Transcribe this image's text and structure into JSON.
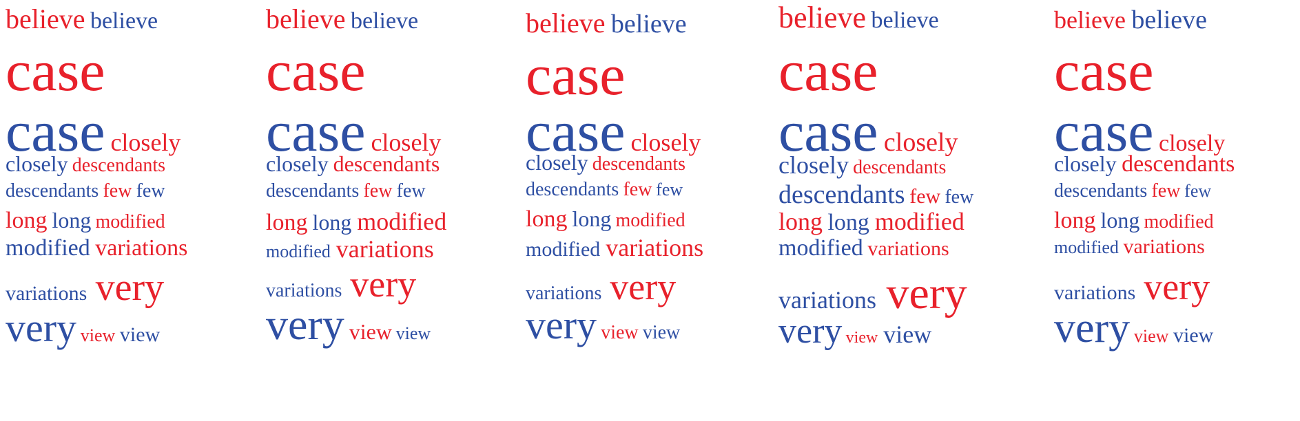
{
  "colors": {
    "red": "#e8212b",
    "blue": "#2e4fa3"
  },
  "panels": [
    {
      "name": "panel-1",
      "lines": [
        [
          {
            "text": "believe",
            "color": "red"
          },
          {
            "text": "believe",
            "color": "blue"
          }
        ],
        [
          {
            "text": "case",
            "color": "red"
          }
        ],
        [
          {
            "text": "case",
            "color": "blue"
          },
          {
            "text": "closely",
            "color": "red"
          }
        ],
        [
          {
            "text": "closely",
            "color": "blue"
          },
          {
            "text": "descendants",
            "color": "red"
          }
        ],
        [
          {
            "text": "descendants",
            "color": "blue"
          },
          {
            "text": "few",
            "color": "red"
          },
          {
            "text": "few",
            "color": "blue"
          }
        ],
        [
          {
            "text": "long",
            "color": "red"
          },
          {
            "text": "long",
            "color": "blue"
          },
          {
            "text": "modified",
            "color": "red"
          }
        ],
        [
          {
            "text": "modified",
            "color": "blue"
          },
          {
            "text": "variations",
            "color": "red"
          }
        ],
        [
          {
            "text": "variations",
            "color": "blue"
          },
          {
            "text": "very",
            "color": "red"
          }
        ],
        [
          {
            "text": "very",
            "color": "blue"
          },
          {
            "text": "view",
            "color": "red"
          },
          {
            "text": "view",
            "color": "blue"
          }
        ]
      ]
    },
    {
      "name": "panel-2",
      "lines": [
        [
          {
            "text": "believe",
            "color": "red"
          },
          {
            "text": "believe",
            "color": "blue"
          }
        ],
        [
          {
            "text": "case",
            "color": "red"
          }
        ],
        [
          {
            "text": "case",
            "color": "blue"
          },
          {
            "text": "closely",
            "color": "red"
          }
        ],
        [
          {
            "text": "closely",
            "color": "blue"
          },
          {
            "text": "descendants",
            "color": "red"
          }
        ],
        [
          {
            "text": "descendants",
            "color": "blue"
          },
          {
            "text": "few",
            "color": "red"
          },
          {
            "text": "few",
            "color": "blue"
          }
        ],
        [
          {
            "text": "long",
            "color": "red"
          },
          {
            "text": "long",
            "color": "blue"
          },
          {
            "text": "modified",
            "color": "red"
          }
        ],
        [
          {
            "text": "modified",
            "color": "blue"
          },
          {
            "text": "variations",
            "color": "red"
          }
        ],
        [
          {
            "text": "variations",
            "color": "blue"
          },
          {
            "text": "very",
            "color": "red"
          }
        ],
        [
          {
            "text": "very",
            "color": "blue"
          },
          {
            "text": "view",
            "color": "red"
          },
          {
            "text": "view",
            "color": "blue"
          }
        ]
      ]
    },
    {
      "name": "panel-3",
      "lines": [
        [
          {
            "text": "believe",
            "color": "red"
          },
          {
            "text": "believe",
            "color": "blue"
          }
        ],
        [
          {
            "text": "case",
            "color": "red"
          }
        ],
        [
          {
            "text": "case",
            "color": "blue"
          },
          {
            "text": "closely",
            "color": "red"
          }
        ],
        [
          {
            "text": "closely",
            "color": "blue"
          },
          {
            "text": "descendants",
            "color": "red"
          }
        ],
        [
          {
            "text": "descendants",
            "color": "blue"
          },
          {
            "text": "few",
            "color": "red"
          },
          {
            "text": "few",
            "color": "blue"
          }
        ],
        [
          {
            "text": "long",
            "color": "red"
          },
          {
            "text": "long",
            "color": "blue"
          },
          {
            "text": "modified",
            "color": "red"
          }
        ],
        [
          {
            "text": "modified",
            "color": "blue"
          },
          {
            "text": "variations",
            "color": "red"
          }
        ],
        [
          {
            "text": "variations",
            "color": "blue"
          },
          {
            "text": "very",
            "color": "red"
          }
        ],
        [
          {
            "text": "very",
            "color": "blue"
          },
          {
            "text": "view",
            "color": "red"
          },
          {
            "text": "view",
            "color": "blue"
          }
        ]
      ]
    },
    {
      "name": "panel-4",
      "lines": [
        [
          {
            "text": "believe",
            "color": "red"
          },
          {
            "text": "believe",
            "color": "blue"
          }
        ],
        [
          {
            "text": "case",
            "color": "red"
          }
        ],
        [
          {
            "text": "case",
            "color": "blue"
          },
          {
            "text": "closely",
            "color": "red"
          }
        ],
        [
          {
            "text": "closely",
            "color": "blue"
          },
          {
            "text": "descendants",
            "color": "red"
          }
        ],
        [
          {
            "text": "descendants",
            "color": "blue"
          },
          {
            "text": "few",
            "color": "red"
          },
          {
            "text": "few",
            "color": "blue"
          }
        ],
        [
          {
            "text": "long",
            "color": "red"
          },
          {
            "text": "long",
            "color": "blue"
          },
          {
            "text": "modified",
            "color": "red"
          }
        ],
        [
          {
            "text": "modified",
            "color": "blue"
          },
          {
            "text": "variations",
            "color": "red"
          }
        ],
        [
          {
            "text": "variations",
            "color": "blue"
          },
          {
            "text": "very",
            "color": "red"
          }
        ],
        [
          {
            "text": "very",
            "color": "blue"
          },
          {
            "text": "view",
            "color": "red"
          },
          {
            "text": "view",
            "color": "blue"
          }
        ]
      ]
    },
    {
      "name": "panel-5",
      "lines": [
        [
          {
            "text": "believe",
            "color": "red"
          },
          {
            "text": "believe",
            "color": "blue"
          }
        ],
        [
          {
            "text": "case",
            "color": "red"
          }
        ],
        [
          {
            "text": "case",
            "color": "blue"
          },
          {
            "text": "closely",
            "color": "red"
          }
        ],
        [
          {
            "text": "closely",
            "color": "blue"
          },
          {
            "text": "descendants",
            "color": "red"
          }
        ],
        [
          {
            "text": "descendants",
            "color": "blue"
          },
          {
            "text": "few",
            "color": "red"
          },
          {
            "text": "few",
            "color": "blue"
          }
        ],
        [
          {
            "text": "long",
            "color": "red"
          },
          {
            "text": "long",
            "color": "blue"
          },
          {
            "text": "modified",
            "color": "red"
          }
        ],
        [
          {
            "text": "modified",
            "color": "blue"
          },
          {
            "text": "variations",
            "color": "red"
          }
        ],
        [
          {
            "text": "variations",
            "color": "blue"
          },
          {
            "text": "very",
            "color": "red"
          }
        ],
        [
          {
            "text": "very",
            "color": "blue"
          },
          {
            "text": "view",
            "color": "red"
          },
          {
            "text": "view",
            "color": "blue"
          }
        ]
      ]
    }
  ]
}
